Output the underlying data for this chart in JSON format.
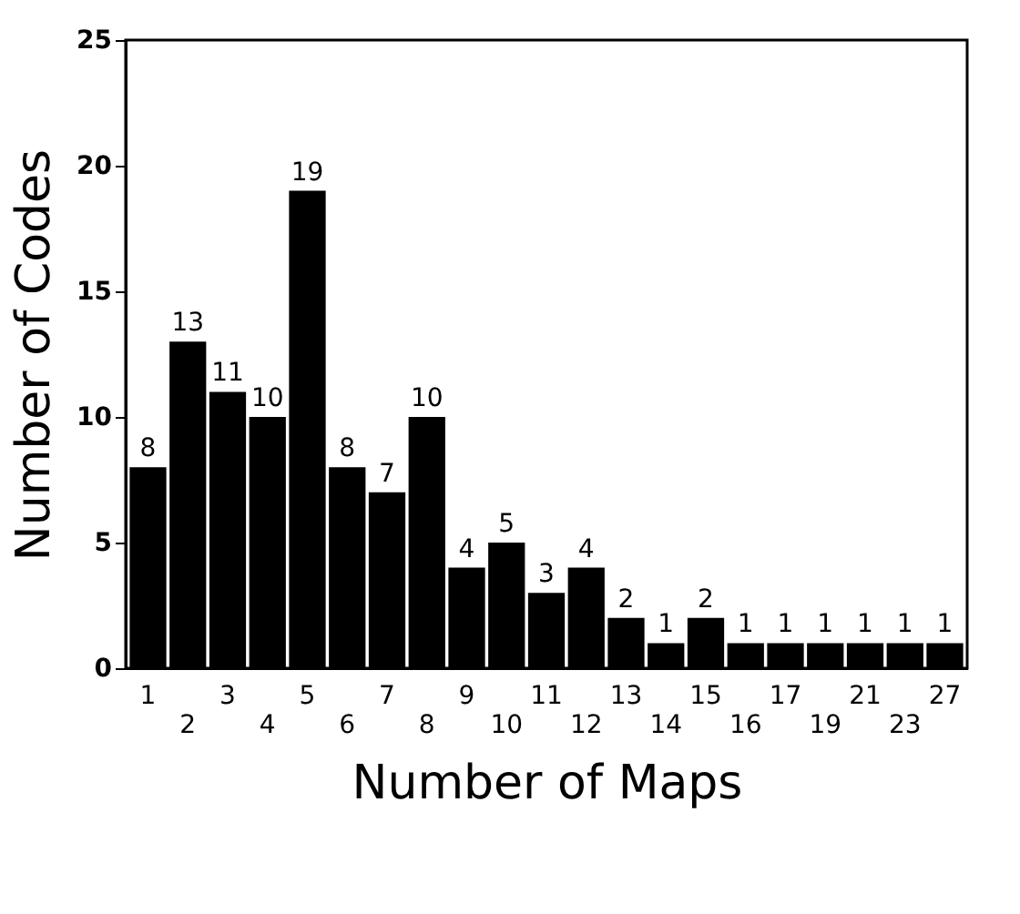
{
  "chart_data": {
    "type": "bar",
    "xlabel": "Number of Maps",
    "ylabel": "Number of Codes",
    "categories": [
      "1",
      "2",
      "3",
      "4",
      "5",
      "6",
      "7",
      "8",
      "9",
      "10",
      "11",
      "12",
      "13",
      "14",
      "15",
      "16",
      "17",
      "19",
      "21",
      "23",
      "27"
    ],
    "values": [
      8,
      13,
      11,
      10,
      19,
      8,
      7,
      10,
      4,
      5,
      3,
      4,
      2,
      1,
      2,
      1,
      1,
      1,
      1,
      1,
      1
    ],
    "color": "#000000",
    "ylim": [
      0,
      25
    ],
    "yticks": [
      0,
      5,
      10,
      15,
      20,
      25
    ],
    "grid": false,
    "data_labels": true
  }
}
